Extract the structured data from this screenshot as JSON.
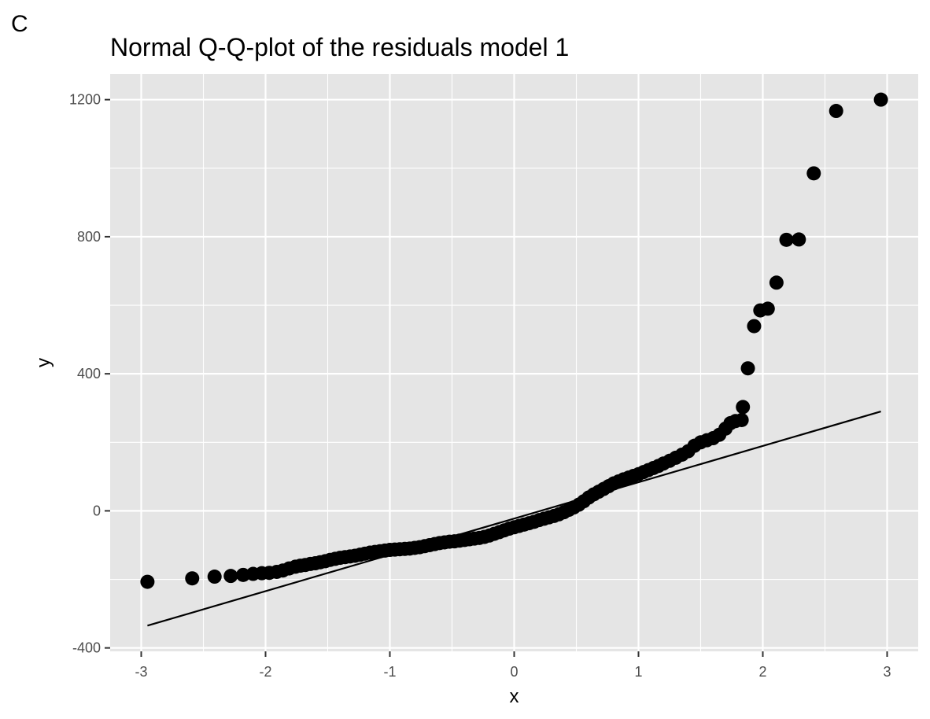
{
  "panel_tag": "C",
  "chart_data": {
    "type": "scatter",
    "title": "Normal Q-Q-plot of the residuals model 1",
    "xlabel": "x",
    "ylabel": "y",
    "xlim": [
      -3.25,
      3.25
    ],
    "ylim": [
      -410,
      1275
    ],
    "x_ticks": [
      -3,
      -2,
      -1,
      0,
      1,
      2,
      3
    ],
    "x_tick_labels": [
      "-3",
      "-2",
      "-1",
      "0",
      "1",
      "2",
      "3"
    ],
    "y_ticks": [
      -400,
      0,
      400,
      800,
      1200
    ],
    "y_tick_labels": [
      "-400",
      "0",
      "400",
      "800",
      "1200"
    ],
    "x_minor_ticks": [
      -2.5,
      -1.5,
      -0.5,
      0.5,
      1.5,
      2.5
    ],
    "y_minor_ticks": [
      -200,
      200,
      600,
      1000
    ],
    "grid": true,
    "panel_background": "#e5e5e5",
    "grid_color": "#ffffff",
    "point_color": "#000000",
    "line_color": "#000000",
    "reference_line": {
      "x": [
        -2.95,
        2.95
      ],
      "y": [
        -335,
        290
      ]
    },
    "series": [
      {
        "points": [
          [
            -2.95,
            -207
          ],
          [
            -2.59,
            -197
          ],
          [
            -2.41,
            -192
          ],
          [
            -2.28,
            -190
          ],
          [
            -2.18,
            -187
          ],
          [
            -2.1,
            -184
          ],
          [
            -2.03,
            -182
          ],
          [
            -1.97,
            -181
          ],
          [
            -1.91,
            -178
          ],
          [
            -1.86,
            -174
          ],
          [
            -1.81,
            -168
          ],
          [
            -1.76,
            -163
          ],
          [
            -1.72,
            -160
          ],
          [
            -1.68,
            -158
          ],
          [
            -1.64,
            -155
          ],
          [
            -1.6,
            -153
          ],
          [
            -1.56,
            -150
          ],
          [
            -1.52,
            -147
          ],
          [
            -1.48,
            -143
          ],
          [
            -1.44,
            -140
          ],
          [
            -1.4,
            -137
          ],
          [
            -1.36,
            -135
          ],
          [
            -1.32,
            -133
          ],
          [
            -1.28,
            -131
          ],
          [
            -1.24,
            -128
          ],
          [
            -1.2,
            -125
          ],
          [
            -1.16,
            -122
          ],
          [
            -1.12,
            -120
          ],
          [
            -1.08,
            -118
          ],
          [
            -1.04,
            -116
          ],
          [
            -1.0,
            -114
          ],
          [
            -0.96,
            -113
          ],
          [
            -0.92,
            -112
          ],
          [
            -0.88,
            -111
          ],
          [
            -0.84,
            -110
          ],
          [
            -0.8,
            -108
          ],
          [
            -0.76,
            -106
          ],
          [
            -0.72,
            -103
          ],
          [
            -0.68,
            -100
          ],
          [
            -0.64,
            -97
          ],
          [
            -0.6,
            -94
          ],
          [
            -0.56,
            -92
          ],
          [
            -0.52,
            -90
          ],
          [
            -0.48,
            -89
          ],
          [
            -0.44,
            -87
          ],
          [
            -0.4,
            -85
          ],
          [
            -0.36,
            -83
          ],
          [
            -0.32,
            -81
          ],
          [
            -0.28,
            -79
          ],
          [
            -0.24,
            -76
          ],
          [
            -0.2,
            -72
          ],
          [
            -0.16,
            -67
          ],
          [
            -0.12,
            -62
          ],
          [
            -0.08,
            -57
          ],
          [
            -0.04,
            -52
          ],
          [
            0.0,
            -48
          ],
          [
            0.04,
            -44
          ],
          [
            0.08,
            -40
          ],
          [
            0.12,
            -36
          ],
          [
            0.16,
            -32
          ],
          [
            0.2,
            -27
          ],
          [
            0.24,
            -23
          ],
          [
            0.28,
            -19
          ],
          [
            0.32,
            -15
          ],
          [
            0.36,
            -10
          ],
          [
            0.4,
            -4
          ],
          [
            0.44,
            3
          ],
          [
            0.48,
            10
          ],
          [
            0.52,
            18
          ],
          [
            0.56,
            28
          ],
          [
            0.6,
            39
          ],
          [
            0.64,
            48
          ],
          [
            0.68,
            56
          ],
          [
            0.72,
            64
          ],
          [
            0.76,
            72
          ],
          [
            0.8,
            80
          ],
          [
            0.84,
            86
          ],
          [
            0.88,
            92
          ],
          [
            0.92,
            97
          ],
          [
            0.96,
            102
          ],
          [
            1.0,
            107
          ],
          [
            1.04,
            113
          ],
          [
            1.08,
            119
          ],
          [
            1.12,
            125
          ],
          [
            1.16,
            131
          ],
          [
            1.2,
            138
          ],
          [
            1.25,
            146
          ],
          [
            1.3,
            155
          ],
          [
            1.35,
            164
          ],
          [
            1.4,
            174
          ],
          [
            1.45,
            190
          ],
          [
            1.5,
            200
          ],
          [
            1.55,
            206
          ],
          [
            1.6,
            212
          ],
          [
            1.65,
            222
          ],
          [
            1.7,
            240
          ],
          [
            1.74,
            256
          ],
          [
            1.78,
            262
          ],
          [
            1.83,
            265
          ],
          [
            1.84,
            303
          ],
          [
            1.88,
            416
          ],
          [
            1.93,
            539
          ],
          [
            1.98,
            585
          ],
          [
            2.04,
            590
          ],
          [
            2.11,
            666
          ],
          [
            2.19,
            791
          ],
          [
            2.29,
            792
          ],
          [
            2.41,
            985
          ],
          [
            2.59,
            1167
          ],
          [
            2.95,
            1200
          ]
        ]
      }
    ]
  }
}
